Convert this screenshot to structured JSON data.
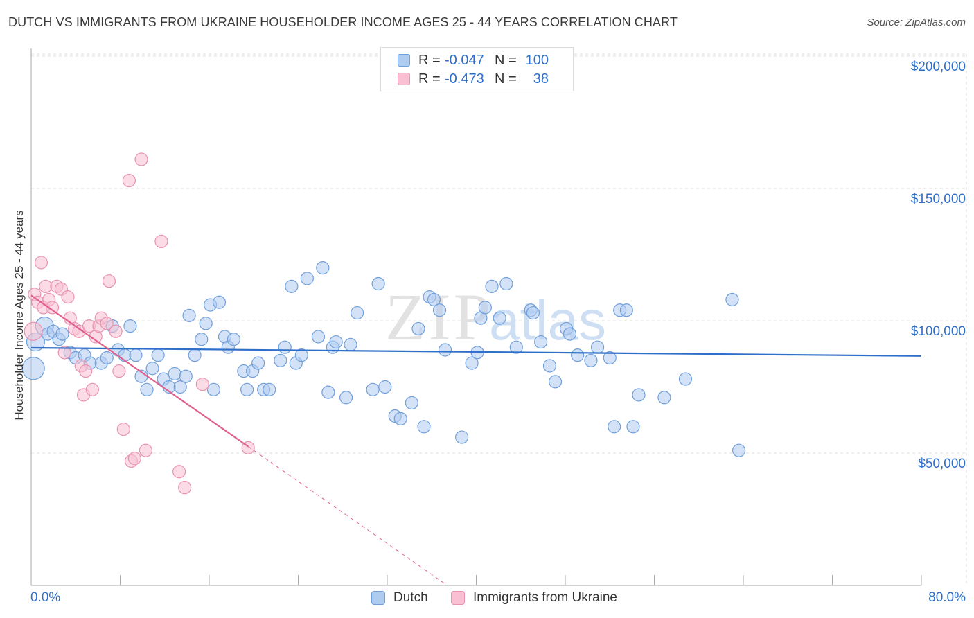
{
  "title": "DUTCH VS IMMIGRANTS FROM UKRAINE HOUSEHOLDER INCOME AGES 25 - 44 YEARS CORRELATION CHART",
  "source": "Source: ZipAtlas.com",
  "legend": {
    "rows": [
      {
        "r_label": "R = ",
        "r_value": "-0.047",
        "n_label": "N = ",
        "n_value": "100"
      },
      {
        "r_label": "R = ",
        "r_value": "-0.473",
        "n_label": "N = ",
        "n_value": "38"
      }
    ]
  },
  "colors": {
    "dutch_fill": "#aecbf0",
    "dutch_stroke": "#6f9fdc",
    "dutch_line": "#2f6fca",
    "ukraine_fill": "#f8c0d2",
    "ukraine_stroke": "#e991b0",
    "ukraine_line": "#e0608f",
    "grid": "#dddddd",
    "axis_text": "#2f6fca"
  },
  "chart_data": {
    "type": "scatter",
    "title": "DUTCH VS IMMIGRANTS FROM UKRAINE HOUSEHOLDER INCOME AGES 25 - 44 YEARS CORRELATION CHART",
    "xlabel": "",
    "ylabel": "Householder Income Ages 25 - 44 years",
    "xlim": [
      0,
      80
    ],
    "ylim": [
      0,
      210000
    ],
    "x_tick_labels": [
      "0.0%",
      "80.0%"
    ],
    "y_ticks": [
      50000,
      100000,
      150000,
      200000
    ],
    "y_tick_labels": [
      "$50,000",
      "$100,000",
      "$150,000",
      "$200,000"
    ],
    "grid": true,
    "legend_position": "top-center",
    "series": [
      {
        "name": "Dutch",
        "trend": {
          "x0": 0,
          "y0": 89800,
          "x1": 80,
          "y1": 86700
        },
        "points": [
          [
            0.2,
            82000,
            3
          ],
          [
            0.4,
            92000,
            2
          ],
          [
            1.2,
            98000,
            2
          ],
          [
            1.5,
            95000,
            1
          ],
          [
            2.0,
            96000,
            1
          ],
          [
            2.5,
            93000,
            1
          ],
          [
            2.8,
            95000,
            1
          ],
          [
            3.5,
            88000,
            1
          ],
          [
            4.0,
            86000,
            1
          ],
          [
            4.8,
            87000,
            1
          ],
          [
            5.3,
            84000,
            1
          ],
          [
            6.3,
            84000,
            1
          ],
          [
            6.8,
            86000,
            1
          ],
          [
            7.3,
            98000,
            1
          ],
          [
            7.8,
            89000,
            1
          ],
          [
            8.4,
            87000,
            1
          ],
          [
            8.9,
            98000,
            1
          ],
          [
            9.4,
            87000,
            1
          ],
          [
            9.9,
            79000,
            1
          ],
          [
            10.4,
            74000,
            1
          ],
          [
            10.9,
            82000,
            1
          ],
          [
            11.4,
            87000,
            1
          ],
          [
            11.9,
            78000,
            1
          ],
          [
            12.4,
            75000,
            1
          ],
          [
            12.9,
            80000,
            1
          ],
          [
            13.4,
            75000,
            1
          ],
          [
            13.9,
            79000,
            1
          ],
          [
            14.2,
            102000,
            1
          ],
          [
            14.7,
            87000,
            1
          ],
          [
            15.3,
            93000,
            1
          ],
          [
            15.7,
            99000,
            1
          ],
          [
            16.1,
            106000,
            1
          ],
          [
            16.4,
            74000,
            1
          ],
          [
            16.9,
            107000,
            1
          ],
          [
            17.4,
            94000,
            1
          ],
          [
            17.7,
            90000,
            1
          ],
          [
            18.2,
            93000,
            1
          ],
          [
            19.1,
            81000,
            1
          ],
          [
            19.4,
            74000,
            1
          ],
          [
            19.9,
            81000,
            1
          ],
          [
            20.4,
            84000,
            1
          ],
          [
            20.9,
            74000,
            1
          ],
          [
            21.4,
            74000,
            1
          ],
          [
            22.4,
            85000,
            1
          ],
          [
            22.8,
            90000,
            1
          ],
          [
            23.4,
            113000,
            1
          ],
          [
            23.8,
            84000,
            1
          ],
          [
            24.3,
            87000,
            1
          ],
          [
            24.8,
            116000,
            1
          ],
          [
            25.8,
            94000,
            1
          ],
          [
            26.2,
            120000,
            1
          ],
          [
            26.7,
            73000,
            1
          ],
          [
            27.1,
            90000,
            1
          ],
          [
            27.4,
            92000,
            1
          ],
          [
            28.3,
            71000,
            1
          ],
          [
            28.7,
            91000,
            1
          ],
          [
            29.3,
            103000,
            1
          ],
          [
            30.7,
            74000,
            1
          ],
          [
            31.2,
            114000,
            1
          ],
          [
            31.8,
            75000,
            1
          ],
          [
            32.7,
            64000,
            1
          ],
          [
            33.2,
            63000,
            1
          ],
          [
            34.2,
            69000,
            1
          ],
          [
            34.8,
            97000,
            1
          ],
          [
            35.3,
            60000,
            1
          ],
          [
            35.8,
            109000,
            1
          ],
          [
            36.2,
            108000,
            1
          ],
          [
            36.7,
            104000,
            1
          ],
          [
            37.2,
            89000,
            1
          ],
          [
            38.7,
            56000,
            1
          ],
          [
            39.6,
            84000,
            1
          ],
          [
            40.1,
            88000,
            1
          ],
          [
            40.4,
            101000,
            1
          ],
          [
            40.8,
            105000,
            1
          ],
          [
            41.4,
            113000,
            1
          ],
          [
            42.1,
            101000,
            1
          ],
          [
            42.7,
            114000,
            1
          ],
          [
            43.6,
            90000,
            1
          ],
          [
            44.9,
            104000,
            1
          ],
          [
            45.1,
            103000,
            1
          ],
          [
            45.8,
            92000,
            1
          ],
          [
            46.6,
            83000,
            1
          ],
          [
            47.1,
            77000,
            1
          ],
          [
            48.1,
            97000,
            1
          ],
          [
            48.4,
            95000,
            1
          ],
          [
            49.1,
            87000,
            1
          ],
          [
            50.3,
            85000,
            1
          ],
          [
            50.9,
            90000,
            1
          ],
          [
            52.0,
            86000,
            1
          ],
          [
            52.4,
            60000,
            1
          ],
          [
            52.9,
            104000,
            1
          ],
          [
            53.5,
            104000,
            1
          ],
          [
            54.1,
            60000,
            1
          ],
          [
            54.6,
            72000,
            1
          ],
          [
            56.9,
            71000,
            1
          ],
          [
            58.8,
            78000,
            1
          ],
          [
            63.0,
            108000,
            1
          ],
          [
            63.6,
            51000,
            1
          ]
        ]
      },
      {
        "name": "Immigrants from Ukraine",
        "trend": {
          "x0": 0,
          "y0": 109600,
          "x1": 19.5,
          "y1": 52500
        },
        "trend_dashed": {
          "x0": 19.5,
          "y0": 52500,
          "x1": 37.4,
          "y1": 0
        },
        "points": [
          [
            0.2,
            96000,
            2
          ],
          [
            0.3,
            110000,
            1
          ],
          [
            0.6,
            107000,
            1
          ],
          [
            0.9,
            122000,
            1
          ],
          [
            1.1,
            105000,
            1
          ],
          [
            1.3,
            113000,
            1
          ],
          [
            1.6,
            108000,
            1
          ],
          [
            1.9,
            105000,
            1
          ],
          [
            2.3,
            113000,
            1
          ],
          [
            2.7,
            112000,
            1
          ],
          [
            3.0,
            88000,
            1
          ],
          [
            3.3,
            109000,
            1
          ],
          [
            3.5,
            101000,
            1
          ],
          [
            3.9,
            97000,
            1
          ],
          [
            4.3,
            96000,
            1
          ],
          [
            4.5,
            83000,
            1
          ],
          [
            4.7,
            72000,
            1
          ],
          [
            4.9,
            81000,
            1
          ],
          [
            5.2,
            98000,
            1
          ],
          [
            5.5,
            74000,
            1
          ],
          [
            5.8,
            94000,
            1
          ],
          [
            6.1,
            98000,
            1
          ],
          [
            6.3,
            101000,
            1
          ],
          [
            6.8,
            99000,
            1
          ],
          [
            7.0,
            115000,
            1
          ],
          [
            7.6,
            96000,
            1
          ],
          [
            7.9,
            81000,
            1
          ],
          [
            8.3,
            59000,
            1
          ],
          [
            8.8,
            153000,
            1
          ],
          [
            9.0,
            47000,
            1
          ],
          [
            9.3,
            48000,
            1
          ],
          [
            9.9,
            161000,
            1
          ],
          [
            10.3,
            51000,
            1
          ],
          [
            11.7,
            130000,
            1
          ],
          [
            13.3,
            43000,
            1
          ],
          [
            13.8,
            37000,
            1
          ],
          [
            15.4,
            76000,
            1
          ],
          [
            19.5,
            52000,
            1
          ]
        ]
      }
    ]
  },
  "bottom_legend": {
    "dutch": "Dutch",
    "ukraine": "Immigrants from Ukraine"
  },
  "watermark": "ZIPatlas"
}
